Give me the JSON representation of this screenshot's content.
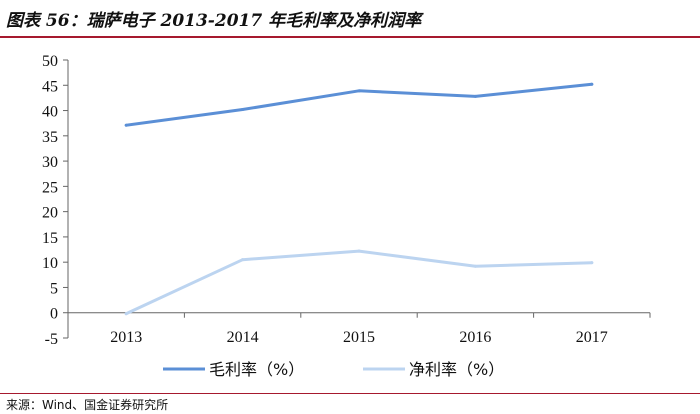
{
  "header": {
    "title": "图表 56：瑞萨电子 2013-2017 年毛利率及净利润率"
  },
  "footer": {
    "source": "来源：Wind、国金证券研究所"
  },
  "colors": {
    "gross": "#5b8fd6",
    "net": "#bcd4f0",
    "rule": "#a6192e",
    "axis": "#666666"
  },
  "chart_data": {
    "type": "line",
    "title": "",
    "xlabel": "",
    "ylabel": "",
    "categories": [
      "2013",
      "2014",
      "2015",
      "2016",
      "2017"
    ],
    "ylim": [
      -5,
      50
    ],
    "yticks": [
      "50",
      "45",
      "40",
      "35",
      "30",
      "25",
      "20",
      "15",
      "10",
      "5",
      "0",
      "-5"
    ],
    "grid": false,
    "legend": "bottom",
    "series": [
      {
        "name": "毛利率（%）",
        "values": [
          37.1,
          40.2,
          43.9,
          42.8,
          45.2
        ]
      },
      {
        "name": "净利率（%）",
        "values": [
          -0.2,
          10.5,
          12.2,
          9.2,
          9.9
        ]
      }
    ]
  }
}
